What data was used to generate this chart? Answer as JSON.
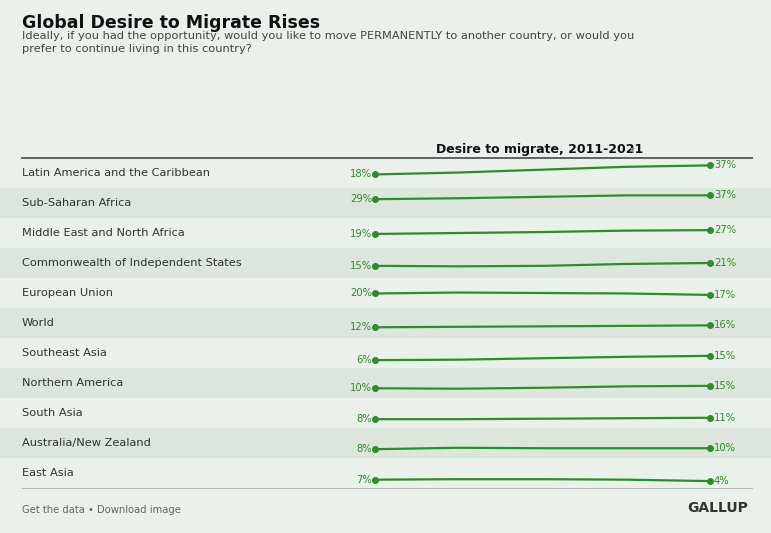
{
  "title": "Global Desire to Migrate Rises",
  "subtitle_line1": "Ideally, if you had the opportunity, would you like to move PERMANENTLY to another country, or would you",
  "subtitle_line2": "prefer to continue living in this country?",
  "col_header": "Desire to migrate, 2011-2021",
  "background_color": "#eaf0ea",
  "row_bg_odd": "#dce6dc",
  "row_bg_even": "#eaf0ea",
  "line_color": "#2d8c2d",
  "label_color": "#2d8c2d",
  "footer_left": "Get the data • Download image",
  "footer_right": "GALLUP",
  "regions": [
    "Latin America and the Caribbean",
    "Sub-Saharan Africa",
    "Middle East and North Africa",
    "Commonwealth of Independent States",
    "European Union",
    "World",
    "Southeast Asia",
    "Northern America",
    "South Asia",
    "Australia/New Zealand",
    "East Asia"
  ],
  "start_values": [
    18,
    29,
    19,
    15,
    20,
    12,
    6,
    10,
    8,
    8,
    7
  ],
  "end_values": [
    37,
    37,
    27,
    21,
    17,
    16,
    15,
    15,
    11,
    10,
    4
  ],
  "mid_values": [
    [
      18,
      22,
      28,
      34,
      37
    ],
    [
      29,
      31,
      34,
      37,
      37
    ],
    [
      19,
      21,
      23,
      26,
      27
    ],
    [
      15,
      14,
      15,
      19,
      21
    ],
    [
      20,
      22,
      21,
      20,
      17
    ],
    [
      12,
      13,
      14,
      15,
      16
    ],
    [
      6,
      7,
      10,
      13,
      15
    ],
    [
      10,
      9,
      11,
      14,
      15
    ],
    [
      8,
      8,
      9,
      10,
      11
    ],
    [
      8,
      11,
      10,
      10,
      10
    ],
    [
      7,
      8,
      8,
      7,
      4
    ]
  ]
}
